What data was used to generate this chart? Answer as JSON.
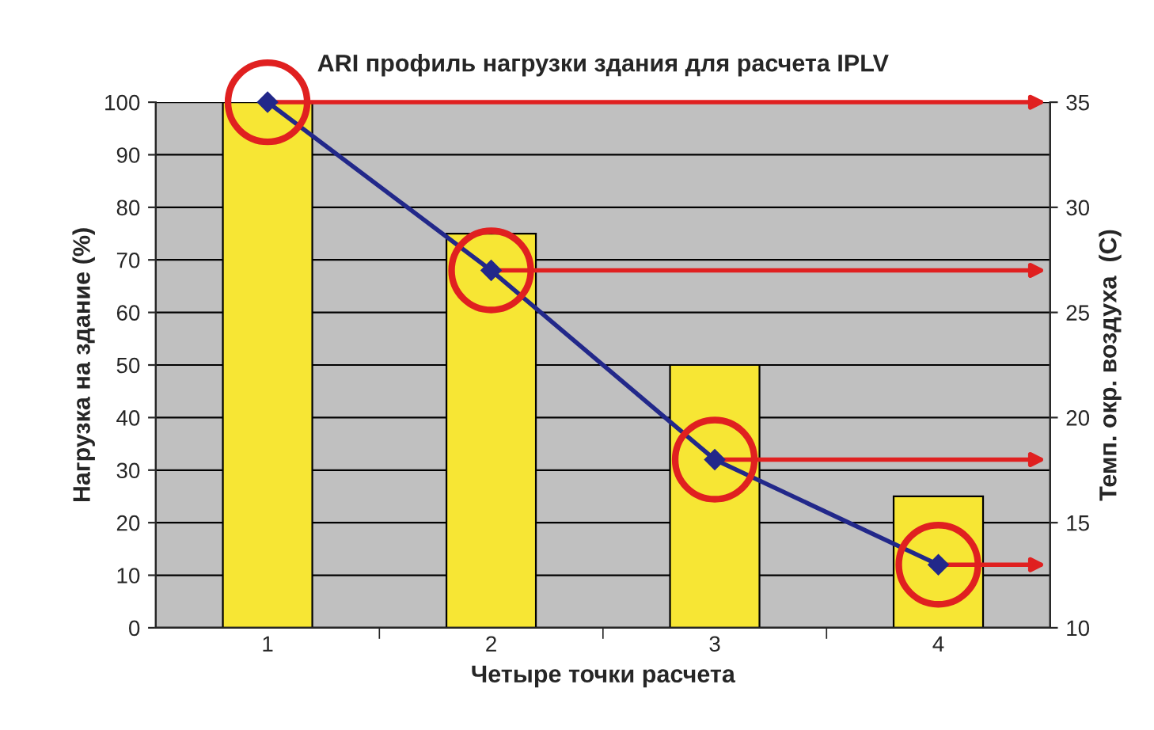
{
  "chart_data": {
    "type": "bar",
    "title": "ARI профиль нагрузки здания для расчета IPLV",
    "xlabel": "Четыре точки расчета",
    "ylabel": "Нагрузка на здание (%)",
    "y2label": "Темп. окр. воздуха  (C)",
    "categories": [
      "1",
      "2",
      "3",
      "4"
    ],
    "series": [
      {
        "color": "#f7e634",
        "values": [
          100,
          75,
          50,
          25
        ]
      },
      {
        "type": "line",
        "axis": "y2",
        "color": "#22288a",
        "marker": "diamond",
        "values": [
          35,
          27,
          18,
          13
        ]
      }
    ],
    "ylim": [
      0,
      100
    ],
    "yticks": [
      0,
      10,
      20,
      30,
      40,
      50,
      60,
      70,
      80,
      90,
      100
    ],
    "y2lim": [
      10,
      35
    ],
    "y2ticks": [
      10,
      15,
      20,
      25,
      30,
      35
    ],
    "grid": "y"
  }
}
